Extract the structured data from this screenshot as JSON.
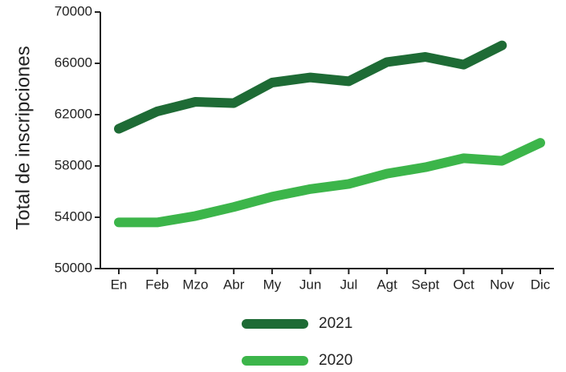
{
  "chart_data": {
    "type": "line",
    "y_label": "Total de inscripciones",
    "categories": [
      "En",
      "Feb",
      "Mzo",
      "Abr",
      "My",
      "Jun",
      "Jul",
      "Agt",
      "Sept",
      "Oct",
      "Nov",
      "Dic"
    ],
    "series": [
      {
        "name": "2021",
        "color": "#1e6b35",
        "values": [
          60900,
          62250,
          63000,
          62900,
          64500,
          64900,
          64600,
          66100,
          66500,
          65900,
          67400,
          null
        ]
      },
      {
        "name": "2020",
        "color": "#3cb54a",
        "values": [
          53600,
          53600,
          54100,
          54800,
          55600,
          56200,
          56600,
          57400,
          57900,
          58600,
          58400,
          59800
        ]
      }
    ],
    "ylim": [
      50000,
      70000
    ],
    "yticks": [
      50000,
      54000,
      58000,
      62000,
      66000,
      70000
    ]
  }
}
